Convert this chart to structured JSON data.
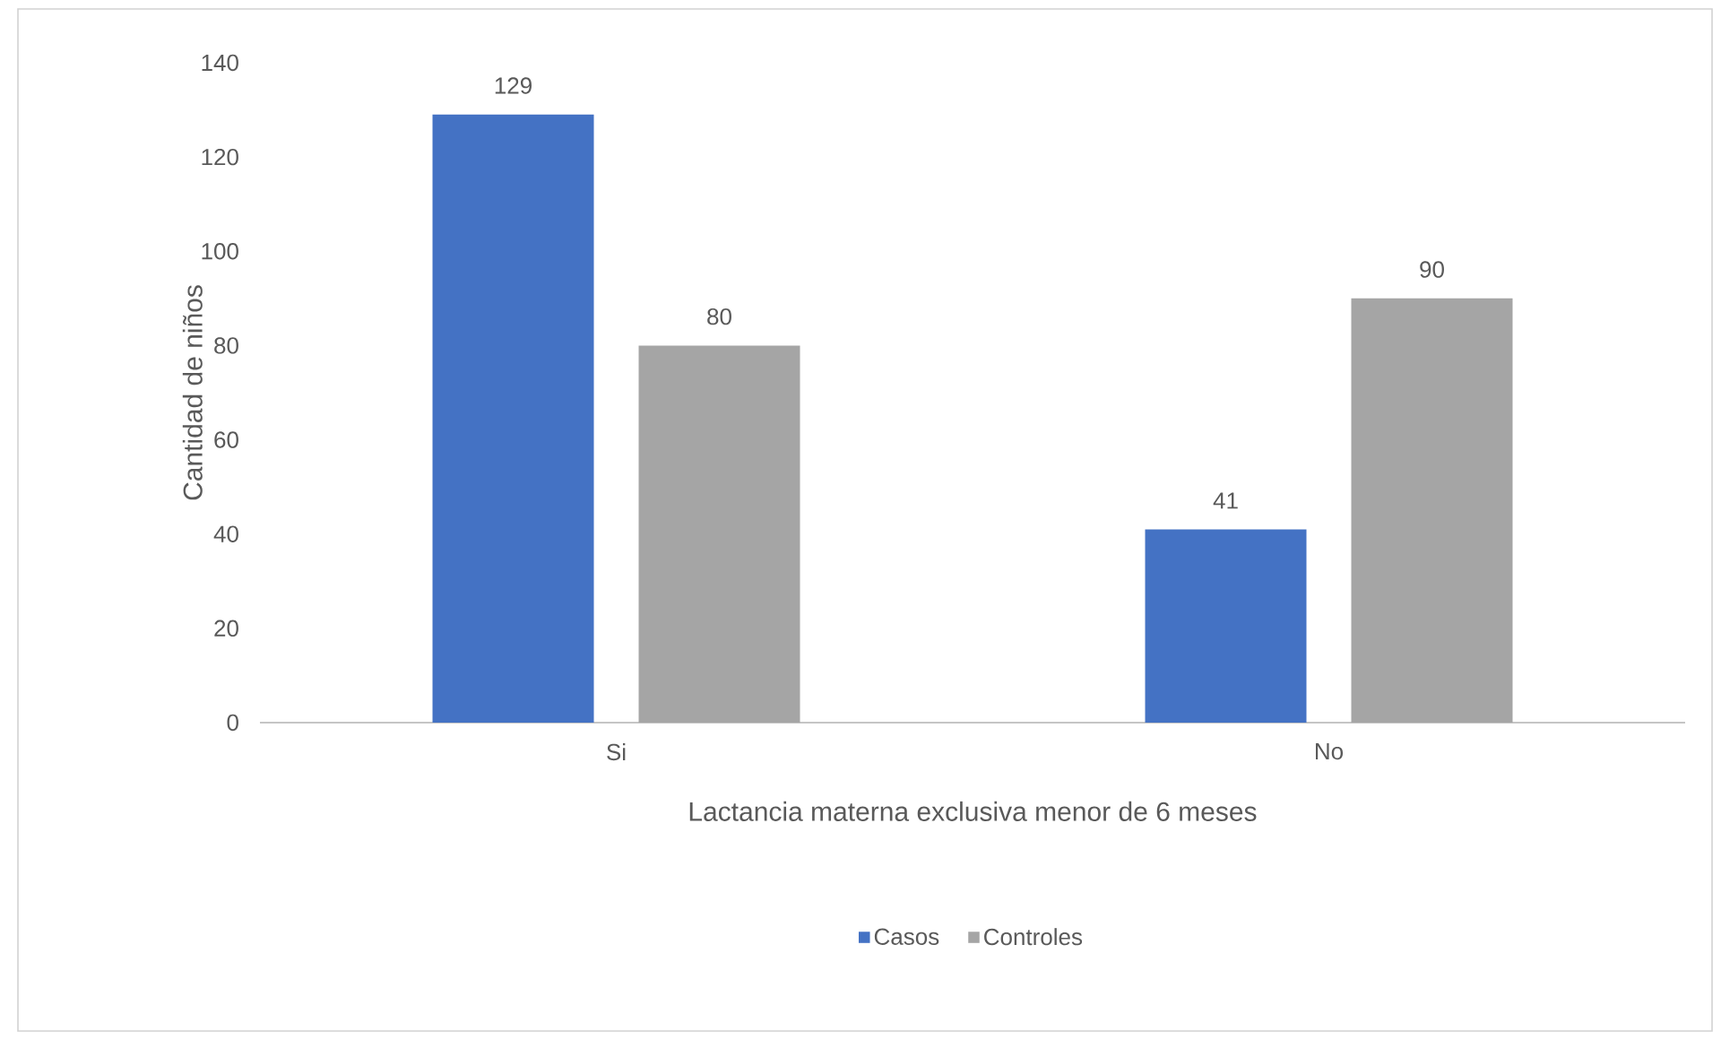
{
  "chart_data": {
    "type": "bar",
    "xlabel": "Lactancia materna exclusiva menor de 6 meses",
    "ylabel": "Cantidad de niños",
    "categories": [
      "Si",
      "No"
    ],
    "series": [
      {
        "name": "Casos",
        "color": "#4472c4",
        "values": [
          129,
          41
        ]
      },
      {
        "name": "Controles",
        "color": "#a5a5a5",
        "values": [
          80,
          90
        ]
      }
    ],
    "ylim": [
      0,
      140
    ],
    "yticks": [
      0,
      20,
      40,
      60,
      80,
      100,
      120,
      140
    ],
    "data_labels": true,
    "legend": "bottom",
    "grid": false
  }
}
